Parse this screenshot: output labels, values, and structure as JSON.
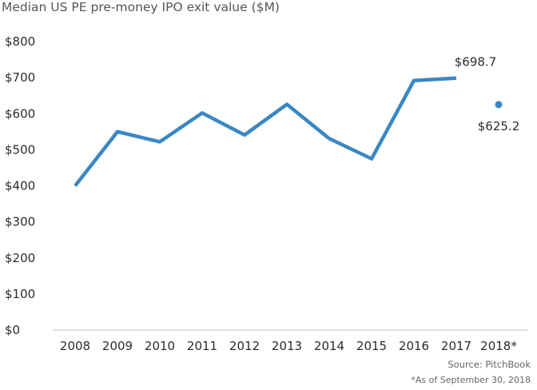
{
  "title": "Median US PE pre-money IPO exit value ($M)",
  "source": "Source: PitchBook",
  "note": "*As of September 30, 2018",
  "chart_data": {
    "type": "line",
    "title": "Median US PE pre-money IPO exit value ($M)",
    "xlabel": "",
    "ylabel": "",
    "categories": [
      "2008",
      "2009",
      "2010",
      "2011",
      "2012",
      "2013",
      "2014",
      "2015",
      "2016",
      "2017",
      "2018*"
    ],
    "ylim": [
      0,
      800
    ],
    "yticks": [
      0,
      100,
      200,
      300,
      400,
      500,
      600,
      700,
      800
    ],
    "ytick_labels": [
      "$0",
      "$100",
      "$200",
      "$300",
      "$400",
      "$500",
      "$600",
      "$700",
      "$800"
    ],
    "grid": false,
    "series": [
      {
        "values": [
          400,
          550,
          522,
          602,
          541,
          626,
          531,
          475,
          692,
          698.7,
          null
        ],
        "color": "#3a87c4",
        "style": "line"
      },
      {
        "values": [
          null,
          null,
          null,
          null,
          null,
          null,
          null,
          null,
          null,
          null,
          625.2
        ],
        "color": "#3a87c4",
        "style": "point"
      }
    ],
    "data_labels": [
      {
        "category": "2017",
        "text": "$698.7"
      },
      {
        "category": "2018*",
        "text": "$625.2"
      }
    ]
  }
}
